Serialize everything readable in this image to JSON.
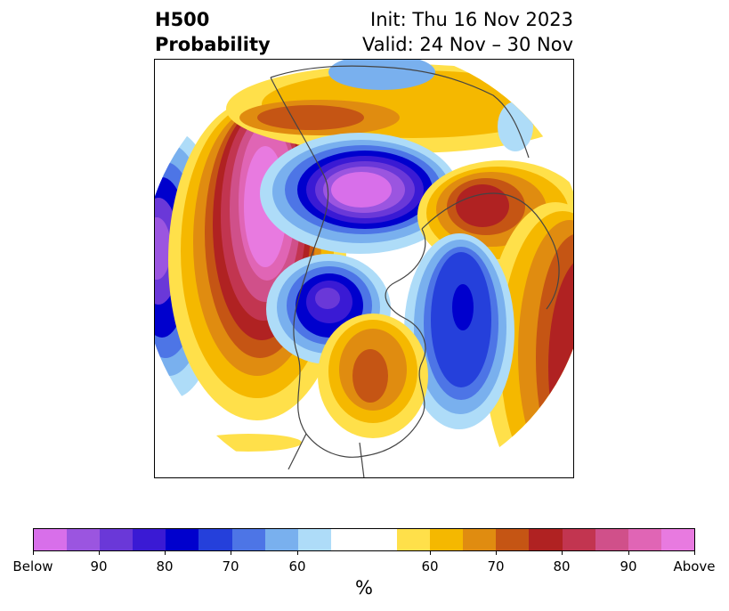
{
  "header": {
    "title_line1": "H500",
    "title_line2": "Probability",
    "init_text": "Init: Thu 16 Nov 2023",
    "valid_text": "Valid: 24 Nov – 30 Nov"
  },
  "colorbar": {
    "unit_label": "%",
    "colors": [
      "#d86fea",
      "#9b55e0",
      "#6a38d8",
      "#3a1ad4",
      "#0000cd",
      "#2540db",
      "#4d75e6",
      "#79b0ee",
      "#aedcf8",
      "#ffffff",
      "#ffe04a",
      "#f5b800",
      "#e08c10",
      "#c55514",
      "#b02222",
      "#c23550",
      "#d0508a",
      "#e065b5",
      "#e87ae0"
    ],
    "tick_labels": [
      "Below",
      "90",
      "80",
      "70",
      "60",
      "60",
      "70",
      "80",
      "90",
      "Above"
    ]
  },
  "map": {
    "projection": "north-polar-stereographic",
    "anomalies": [
      {
        "region": "Bering Sea / Alaska",
        "sign": "above",
        "max_category": "Above"
      },
      {
        "region": "Arctic Ocean / Siberia",
        "sign": "below",
        "max_category": "Below"
      },
      {
        "region": "Western Russia",
        "sign": "above",
        "max_category": "80"
      },
      {
        "region": "Northern Canada / Hudson Bay",
        "sign": "below",
        "max_category": "90"
      },
      {
        "region": "North Atlantic",
        "sign": "below",
        "max_category": "80"
      },
      {
        "region": "Central United States",
        "sign": "above",
        "max_category": "70"
      },
      {
        "region": "North Pacific (west)",
        "sign": "below",
        "max_category": "90"
      }
    ]
  }
}
